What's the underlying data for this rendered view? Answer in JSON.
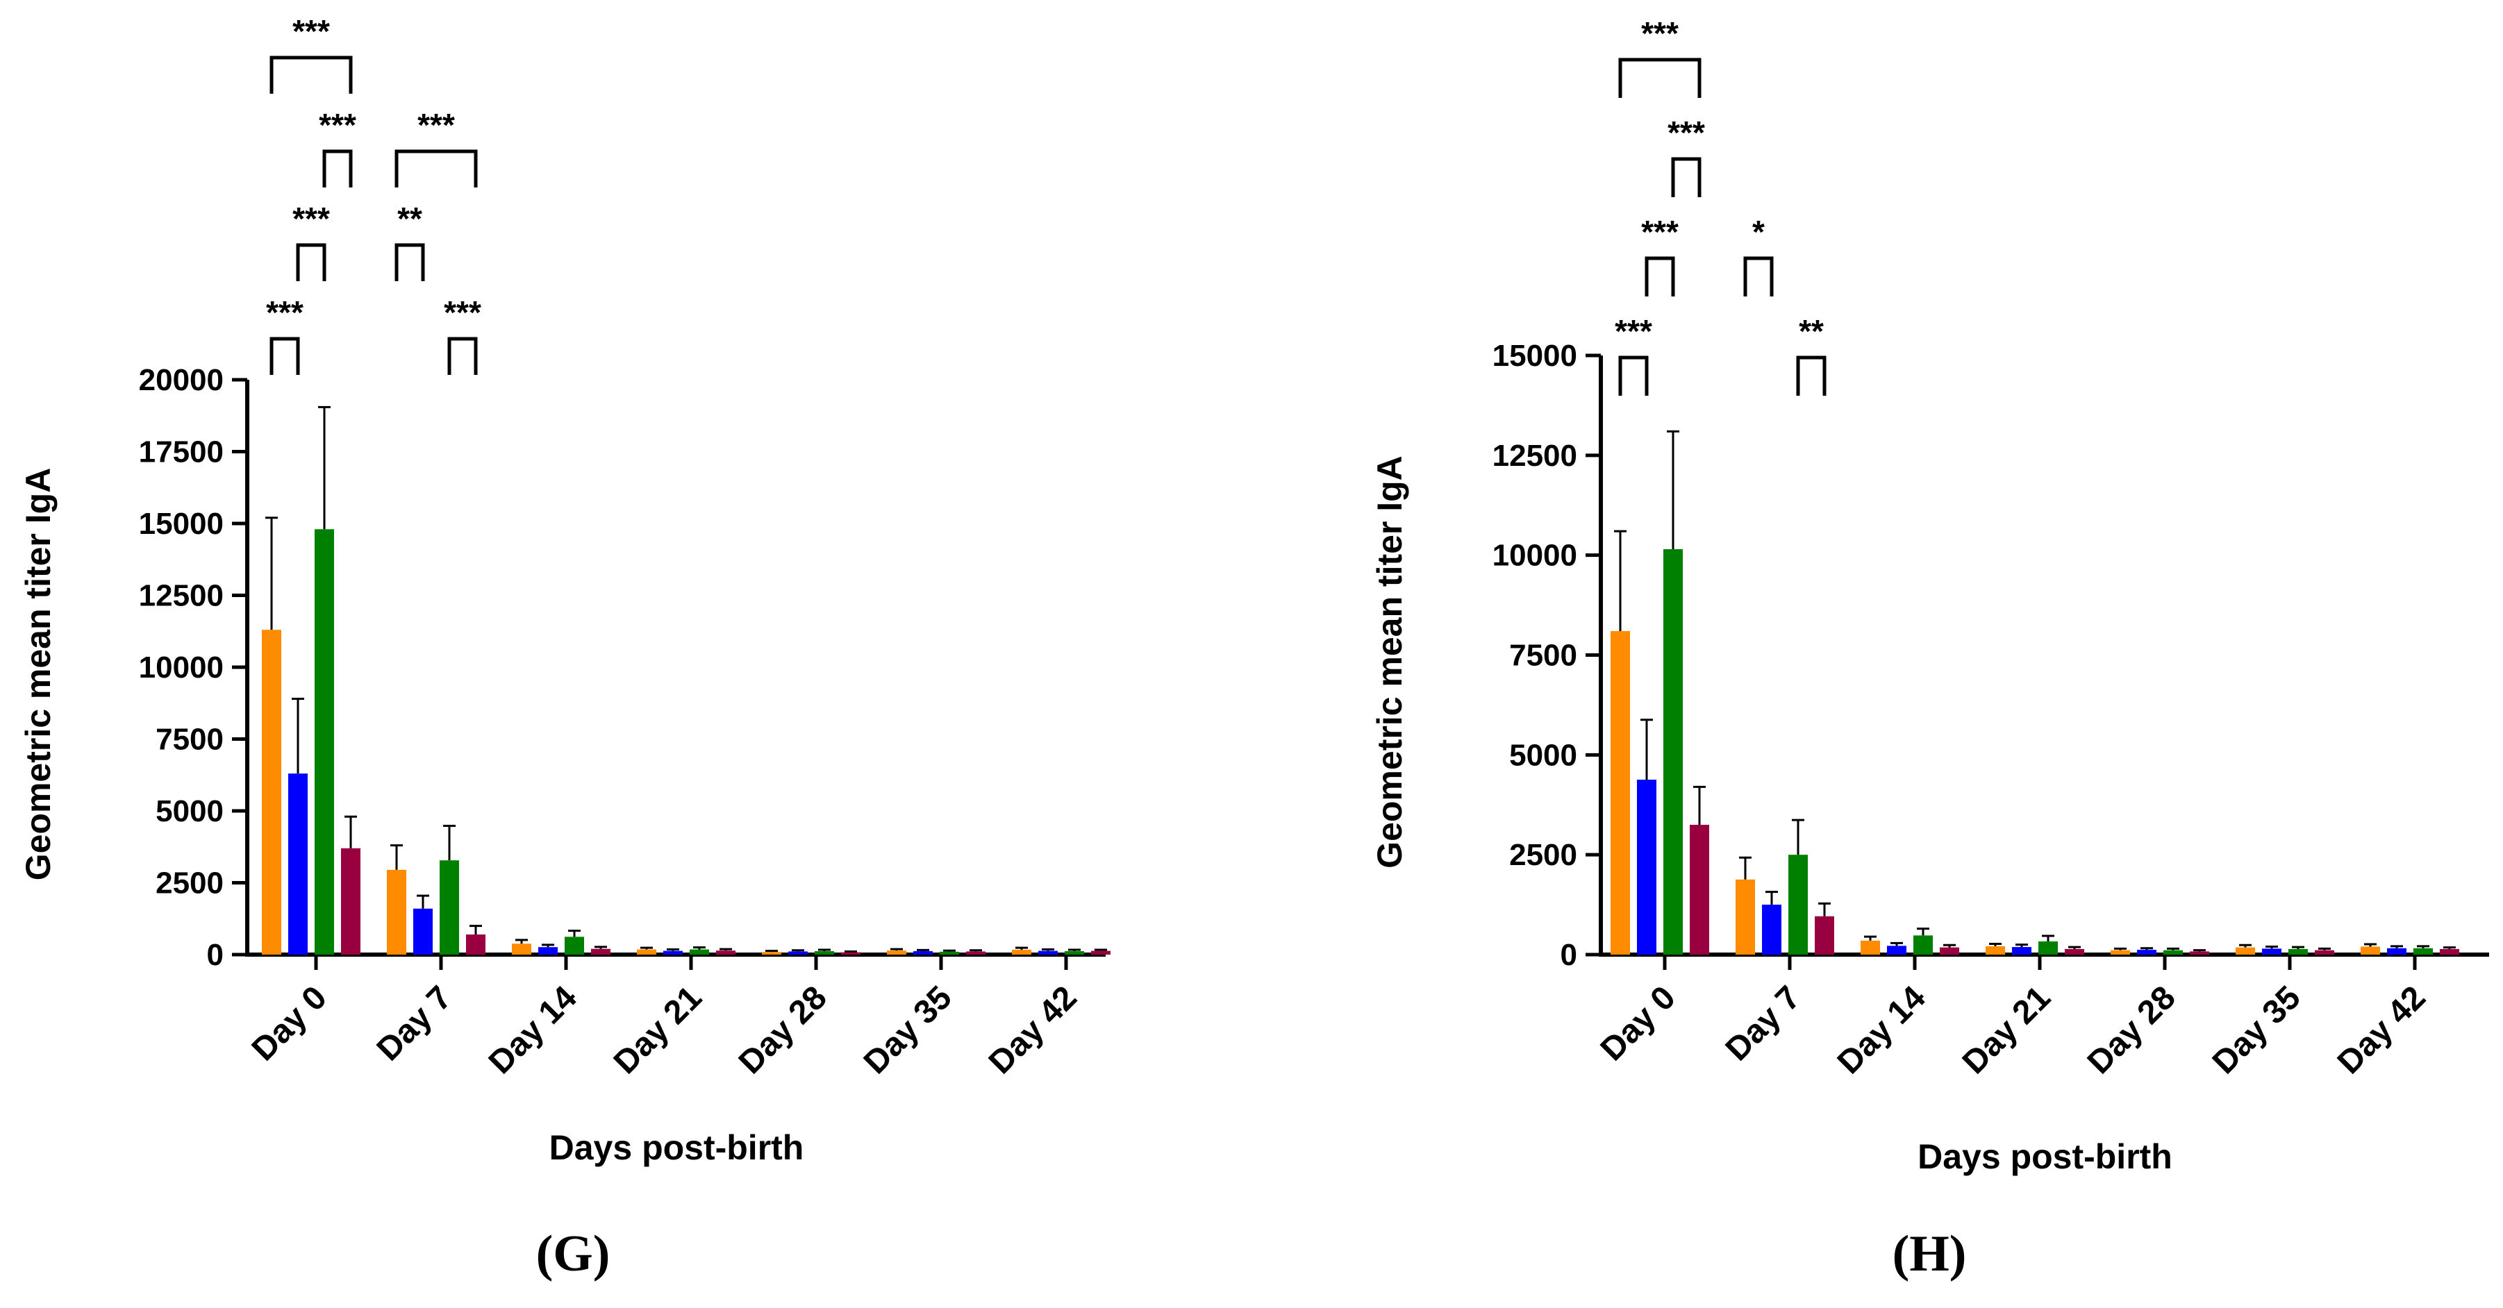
{
  "figure": {
    "series_colors": [
      "#ff8c00",
      "#0000ff",
      "#008000",
      "#990040"
    ]
  },
  "chart_data": [
    {
      "panel": "(G)",
      "type": "bar",
      "xlabel": "Days post-birth",
      "ylabel": "Geometric mean titer IgA",
      "ylim": [
        0,
        20000
      ],
      "yticks": [
        0,
        2500,
        5000,
        7500,
        10000,
        12500,
        15000,
        17500,
        20000
      ],
      "categories": [
        "Day 0",
        "Day 7",
        "Day 14",
        "Day 21",
        "Day 28",
        "Day 35",
        "Day 42"
      ],
      "series": [
        {
          "values": [
            11300,
            2950,
            380,
            180,
            90,
            140,
            170
          ],
          "errors": [
            3900,
            850,
            130,
            60,
            40,
            50,
            70
          ]
        },
        {
          "values": [
            6300,
            1600,
            260,
            130,
            110,
            120,
            130
          ],
          "errors": [
            2600,
            450,
            80,
            50,
            40,
            40,
            50
          ]
        },
        {
          "values": [
            14800,
            3280,
            620,
            180,
            120,
            100,
            120
          ],
          "errors": [
            4250,
            1200,
            210,
            70,
            50,
            40,
            50
          ]
        },
        {
          "values": [
            3700,
            700,
            200,
            140,
            80,
            110,
            130
          ],
          "errors": [
            1100,
            300,
            70,
            50,
            30,
            40,
            40
          ]
        }
      ],
      "significance": [
        {
          "cat": 0,
          "a": 0,
          "b": 1,
          "label": "***",
          "level": 0
        },
        {
          "cat": 0,
          "a": 1,
          "b": 2,
          "label": "***",
          "level": 1
        },
        {
          "cat": 0,
          "a": 2,
          "b": 3,
          "label": "***",
          "level": 2
        },
        {
          "cat": 0,
          "a": 0,
          "b": 3,
          "label": "***",
          "level": 3
        },
        {
          "cat": 1,
          "a": 2,
          "b": 3,
          "label": "***",
          "level": 0
        },
        {
          "cat": 1,
          "a": 0,
          "b": 1,
          "label": "**",
          "level": 1
        },
        {
          "cat": 1,
          "a": 0,
          "b": 3,
          "label": "***",
          "level": 2
        }
      ]
    },
    {
      "panel": "(H)",
      "type": "bar",
      "xlabel": "Days post-birth",
      "ylabel": "Geometric mean titer IgA",
      "ylim": [
        0,
        15000
      ],
      "yticks": [
        0,
        2500,
        5000,
        7500,
        10000,
        12500,
        15000
      ],
      "categories": [
        "Day 0",
        "Day 7",
        "Day 14",
        "Day 21",
        "Day 28",
        "Day 35",
        "Day 42"
      ],
      "series": [
        {
          "values": [
            8100,
            1880,
            350,
            210,
            110,
            180,
            200
          ],
          "errors": [
            2500,
            550,
            100,
            60,
            40,
            60,
            60
          ]
        },
        {
          "values": [
            4380,
            1250,
            220,
            190,
            120,
            150,
            160
          ],
          "errors": [
            1500,
            320,
            70,
            60,
            40,
            50,
            50
          ]
        },
        {
          "values": [
            10150,
            2500,
            480,
            330,
            110,
            140,
            160
          ],
          "errors": [
            2950,
            870,
            170,
            140,
            40,
            50,
            50
          ]
        },
        {
          "values": [
            3250,
            960,
            180,
            140,
            80,
            110,
            140
          ],
          "errors": [
            950,
            320,
            60,
            50,
            30,
            40,
            40
          ]
        }
      ],
      "significance": [
        {
          "cat": 0,
          "a": 0,
          "b": 1,
          "label": "***",
          "level": 0
        },
        {
          "cat": 1,
          "a": 2,
          "b": 3,
          "label": "**",
          "level": 0
        },
        {
          "cat": 0,
          "a": 1,
          "b": 2,
          "label": "***",
          "level": 1
        },
        {
          "cat": 1,
          "a": 0,
          "b": 1,
          "label": "*",
          "level": 1
        },
        {
          "cat": 0,
          "a": 2,
          "b": 3,
          "label": "***",
          "level": 2
        },
        {
          "cat": 0,
          "a": 0,
          "b": 3,
          "label": "***",
          "level": 3
        }
      ]
    }
  ]
}
